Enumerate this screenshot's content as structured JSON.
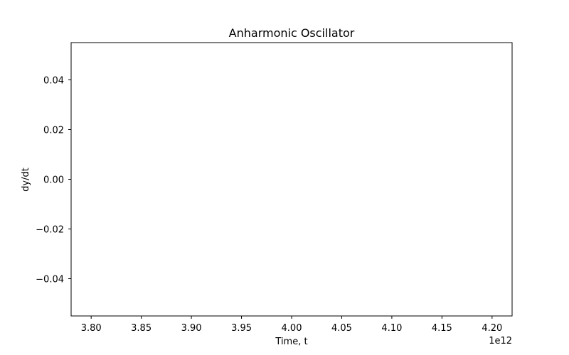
{
  "chart_data": {
    "type": "line",
    "title": "Anharmonic Oscillator",
    "xlabel": "Time, t",
    "ylabel": "dy/dt",
    "x_offset_label": "1e12",
    "x_tick_labels": [
      "3.80",
      "3.85",
      "3.90",
      "3.95",
      "4.00",
      "4.05",
      "4.10",
      "4.15",
      "4.20"
    ],
    "x_ticks": [
      3.8,
      3.85,
      3.9,
      3.95,
      4.0,
      4.05,
      4.1,
      4.15,
      4.2
    ],
    "xlim": [
      3.78,
      4.22
    ],
    "y_tick_labels": [
      "−0.04",
      "−0.02",
      "0.00",
      "0.02",
      "0.04"
    ],
    "y_ticks": [
      -0.04,
      -0.02,
      0.0,
      0.02,
      0.04
    ],
    "ylim": [
      -0.055,
      0.055
    ],
    "series": [],
    "grid": false,
    "legend": "none"
  }
}
